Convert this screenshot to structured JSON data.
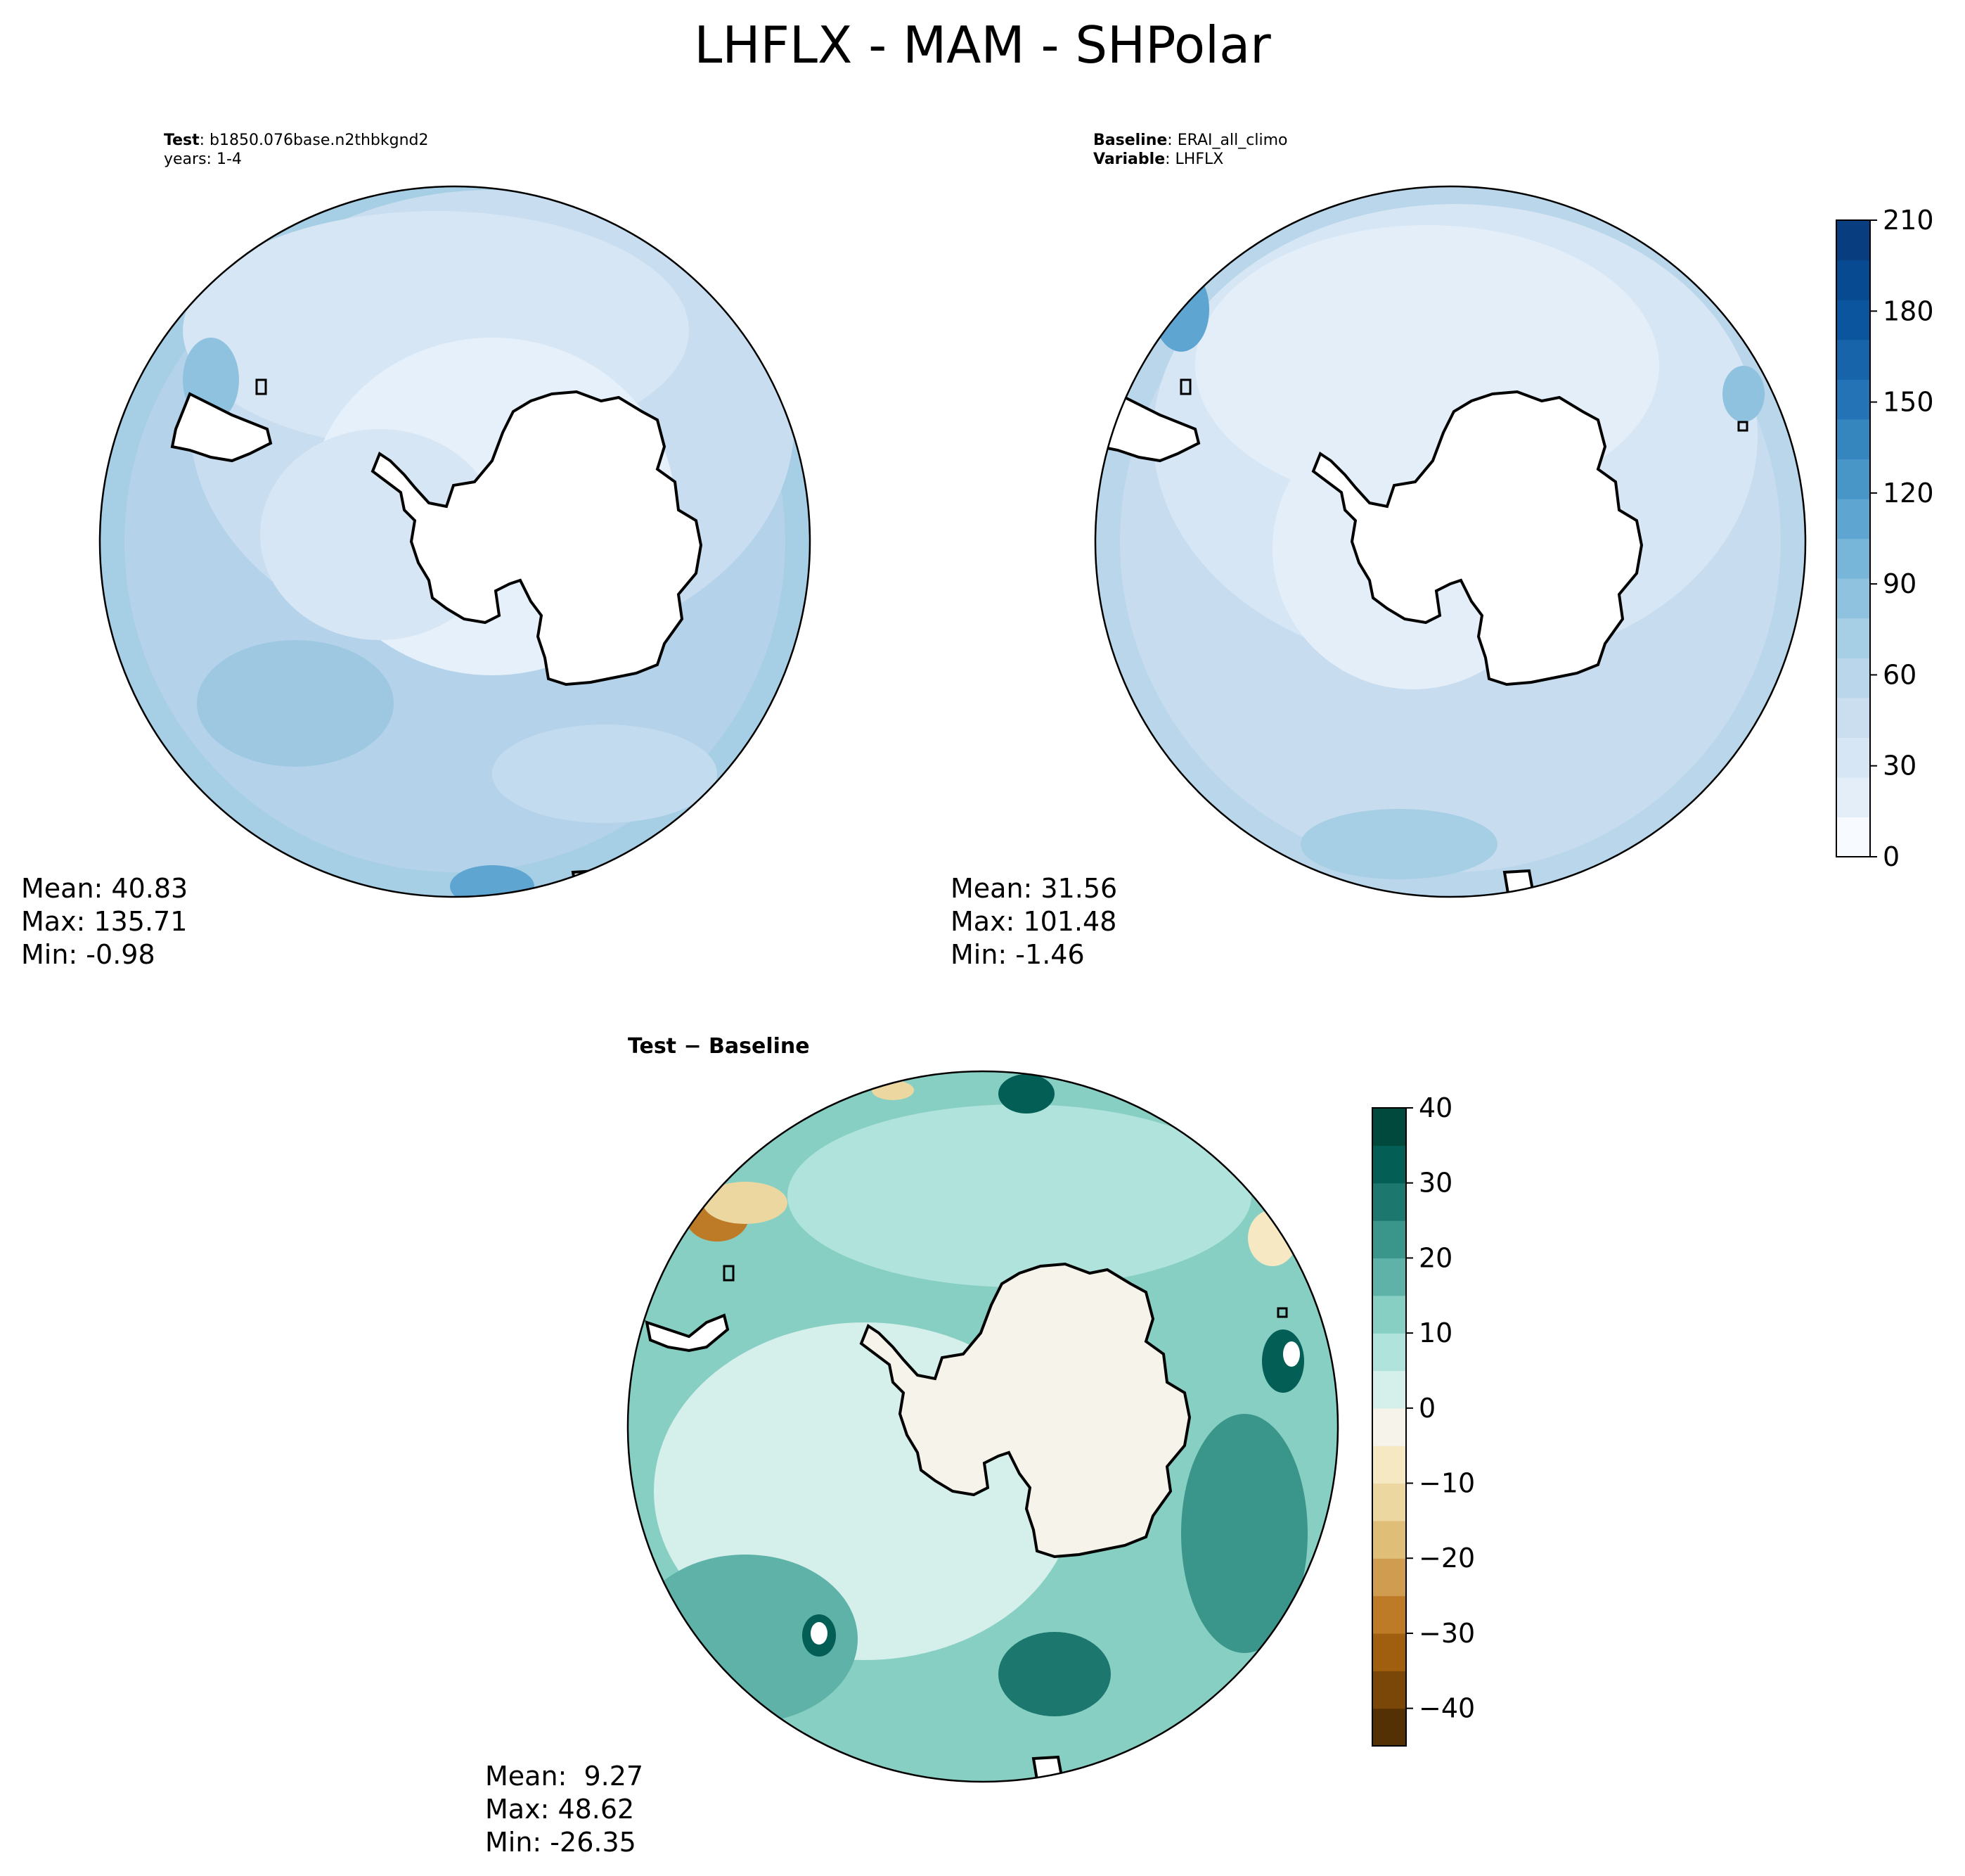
{
  "title": "LHFLX - MAM - SHPolar",
  "panels": {
    "test": {
      "header_label": "Test",
      "header_value": "b1850.076base.n2thbkgnd2",
      "years": "years: 1-4",
      "mean": "Mean: 40.83",
      "max": "Max: 135.71",
      "min": "Min: -0.98"
    },
    "baseline": {
      "header_label": "Baseline",
      "header_value": "ERAI_all_climo",
      "variable_label": "Variable",
      "variable_value": "LHFLX",
      "mean": "Mean: 31.56",
      "max": "Max: 101.48",
      "min": "Min: -1.46"
    },
    "diff": {
      "title": "Test − Baseline",
      "mean": "Mean:  9.27",
      "max": "Max: 48.62",
      "min": "Min: -26.35"
    }
  },
  "colorbars": {
    "main": {
      "ticks": [
        "0",
        "30",
        "60",
        "90",
        "120",
        "150",
        "180",
        "210"
      ],
      "min": 0,
      "max": 210,
      "colors": [
        "#f7fbff",
        "#e3eef9",
        "#d6e6f4",
        "#cadef0",
        "#b9d6ea",
        "#a6cee4",
        "#8fc2de",
        "#77b5d9",
        "#5ea5d1",
        "#4895c8",
        "#3585bf",
        "#2373b6",
        "#1764ab",
        "#0b559f",
        "#084a91",
        "#083d7f"
      ]
    },
    "diff": {
      "ticks": [
        "40",
        "30",
        "20",
        "10",
        "0",
        "−10",
        "−20",
        "−30",
        "−40"
      ],
      "tick_values": [
        40,
        30,
        20,
        10,
        0,
        -10,
        -20,
        -30,
        -40
      ],
      "min": -45,
      "max": 40,
      "colors": [
        "#543005",
        "#7b4708",
        "#a05f0f",
        "#bd7b28",
        "#d09c4f",
        "#dfbf78",
        "#edd7a0",
        "#f6e8c3",
        "#f5f3ea",
        "#d5efeb",
        "#b0e3dc",
        "#88cfc3",
        "#5eb2a8",
        "#3a958b",
        "#1c786e",
        "#035e55",
        "#01493d"
      ]
    }
  },
  "colors": {
    "land": "#ffffff",
    "coast": "#000000"
  }
}
